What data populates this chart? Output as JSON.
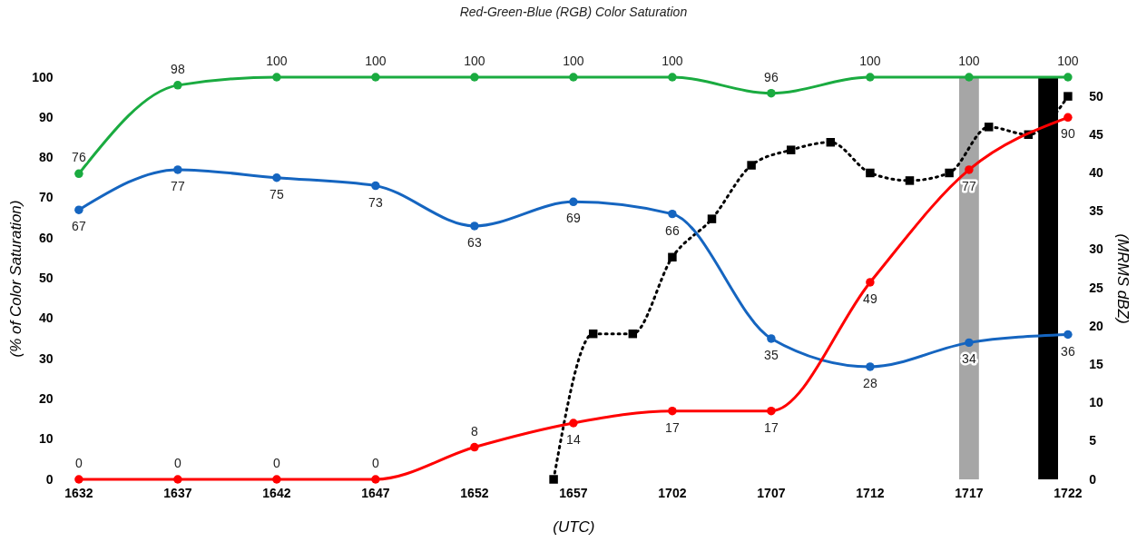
{
  "chart_data": {
    "type": "line",
    "title": "Red-Green-Blue (RGB) Color Saturation",
    "xlabel": "(UTC)",
    "ylabel": "(% of Color Saturation)",
    "y2label": "(MRMS dBZ)",
    "categories": [
      "1632",
      null,
      null,
      null,
      null,
      "1637",
      null,
      null,
      null,
      null,
      "1642",
      null,
      null,
      null,
      null,
      "1647",
      null,
      null,
      null,
      null,
      "1652",
      null,
      null,
      null,
      null,
      "1657",
      null,
      null,
      null,
      null,
      "1702",
      null,
      null,
      null,
      null,
      "1707",
      null,
      null,
      null,
      null,
      "1712",
      null,
      null,
      null,
      null,
      "1717",
      null,
      null,
      null,
      null,
      "1722"
    ],
    "ylim": [
      0,
      100
    ],
    "yticks": [
      0,
      10,
      20,
      30,
      40,
      50,
      60,
      70,
      80,
      90,
      100
    ],
    "y2lim": [
      0,
      52.5
    ],
    "y2ticks": [
      0,
      5,
      10,
      15,
      20,
      25,
      30,
      35,
      40,
      45,
      50
    ],
    "series": [
      {
        "type": "bar",
        "values": [
          null,
          null,
          null,
          null,
          null,
          null,
          null,
          null,
          null,
          null,
          null,
          null,
          null,
          null,
          null,
          null,
          null,
          null,
          null,
          null,
          null,
          null,
          null,
          null,
          null,
          null,
          null,
          null,
          null,
          null,
          null,
          null,
          null,
          null,
          null,
          null,
          null,
          null,
          null,
          null,
          null,
          null,
          null,
          null,
          null,
          100,
          null,
          null,
          null,
          100,
          null
        ],
        "colors": [
          null,
          null,
          null,
          null,
          null,
          null,
          null,
          null,
          null,
          null,
          null,
          null,
          null,
          null,
          null,
          null,
          null,
          null,
          null,
          null,
          null,
          null,
          null,
          null,
          null,
          null,
          null,
          null,
          null,
          null,
          null,
          null,
          null,
          null,
          null,
          null,
          null,
          null,
          null,
          null,
          null,
          null,
          null,
          null,
          null,
          "#a6a6a6",
          null,
          null,
          null,
          "#000000",
          null
        ]
      },
      {
        "color": "#1aab40",
        "marker": "circle",
        "line_style": "solid",
        "values": [
          76,
          null,
          null,
          null,
          null,
          98,
          null,
          null,
          null,
          null,
          100,
          null,
          null,
          null,
          null,
          100,
          null,
          null,
          null,
          null,
          100,
          null,
          null,
          null,
          null,
          100,
          null,
          null,
          null,
          null,
          100,
          null,
          null,
          null,
          null,
          96,
          null,
          null,
          null,
          null,
          100,
          null,
          null,
          null,
          null,
          100,
          null,
          null,
          null,
          null,
          100
        ],
        "value_labels": [
          "76",
          null,
          null,
          null,
          null,
          "98",
          null,
          null,
          null,
          null,
          "100",
          null,
          null,
          null,
          null,
          "100",
          null,
          null,
          null,
          null,
          "100",
          null,
          null,
          null,
          null,
          "100",
          null,
          null,
          null,
          null,
          "100",
          null,
          null,
          null,
          null,
          "96",
          null,
          null,
          null,
          null,
          "100",
          null,
          null,
          null,
          null,
          "100",
          null,
          null,
          null,
          null,
          "100"
        ]
      },
      {
        "color": "#1565c0",
        "marker": "circle",
        "line_style": "solid",
        "values": [
          67,
          null,
          null,
          null,
          null,
          77,
          null,
          null,
          null,
          null,
          75,
          null,
          null,
          null,
          null,
          73,
          null,
          null,
          null,
          null,
          63,
          null,
          null,
          null,
          null,
          69,
          null,
          null,
          null,
          null,
          66,
          null,
          null,
          null,
          null,
          35,
          null,
          null,
          null,
          null,
          28,
          null,
          null,
          null,
          null,
          34,
          null,
          null,
          null,
          null,
          36
        ],
        "value_labels": [
          "67",
          null,
          null,
          null,
          null,
          "77",
          null,
          null,
          null,
          null,
          "75",
          null,
          null,
          null,
          null,
          "73",
          null,
          null,
          null,
          null,
          "63",
          null,
          null,
          null,
          null,
          "69",
          null,
          null,
          null,
          null,
          "66",
          null,
          null,
          null,
          null,
          "35",
          null,
          null,
          null,
          null,
          "28",
          null,
          null,
          null,
          null,
          "34",
          null,
          null,
          null,
          null,
          "36"
        ]
      },
      {
        "color": "#ff0000",
        "marker": "circle",
        "line_style": "solid",
        "values": [
          0,
          null,
          null,
          null,
          null,
          0,
          null,
          null,
          null,
          null,
          0,
          null,
          null,
          null,
          null,
          0,
          null,
          null,
          null,
          null,
          8,
          null,
          null,
          null,
          null,
          14,
          null,
          null,
          null,
          null,
          17,
          null,
          null,
          null,
          null,
          17,
          null,
          null,
          null,
          null,
          49,
          null,
          null,
          null,
          null,
          77,
          null,
          null,
          null,
          null,
          90
        ],
        "value_labels": [
          "0",
          null,
          null,
          null,
          null,
          "0",
          null,
          null,
          null,
          null,
          "0",
          null,
          null,
          null,
          null,
          "0",
          null,
          null,
          null,
          null,
          "8",
          null,
          null,
          null,
          null,
          "14",
          null,
          null,
          null,
          null,
          "17",
          null,
          null,
          null,
          null,
          "17",
          null,
          null,
          null,
          null,
          "49",
          null,
          null,
          null,
          null,
          "77",
          null,
          null,
          null,
          null,
          "90"
        ]
      },
      {
        "color": "#000000",
        "marker": "square",
        "line_style": "dotted",
        "axis": "y2",
        "values": [
          null,
          null,
          null,
          null,
          null,
          null,
          null,
          null,
          null,
          null,
          null,
          null,
          null,
          null,
          null,
          null,
          null,
          null,
          null,
          null,
          null,
          null,
          null,
          null,
          0,
          null,
          19,
          null,
          19,
          null,
          29,
          null,
          34,
          null,
          41,
          null,
          43,
          null,
          44,
          null,
          40,
          null,
          39,
          null,
          40,
          null,
          46,
          null,
          45,
          null,
          50
        ]
      }
    ]
  }
}
